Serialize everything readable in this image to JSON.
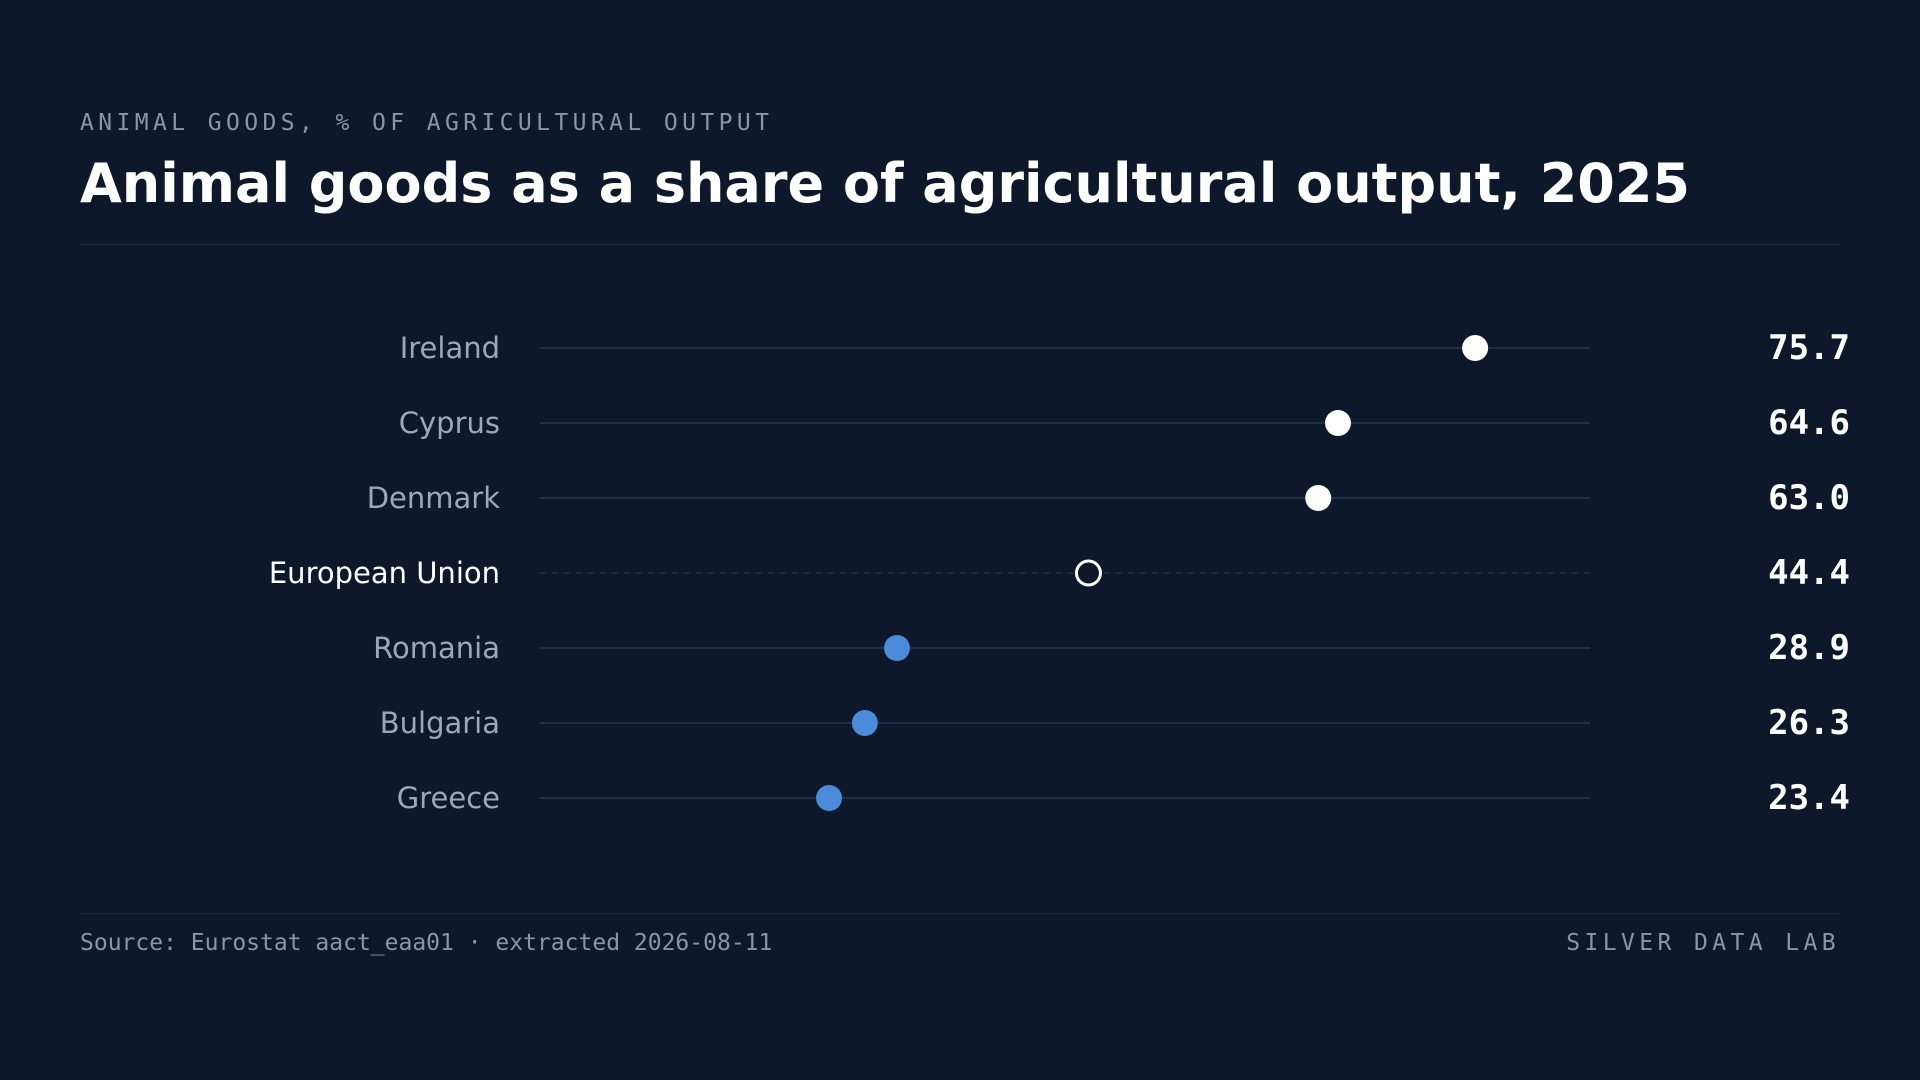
{
  "header": {
    "kicker": "ANIMAL GOODS, % OF AGRICULTURAL OUTPUT",
    "title": "Animal goods as a share of agricultural output, 2025"
  },
  "footer": {
    "source": "Source: Eurostat aact_eaa01 · extracted 2026-08-11",
    "brand": "SILVER DATA LAB"
  },
  "colors": {
    "background": "#0d192a",
    "above_reference": "#ffffff",
    "below_reference": "#4a8cd9",
    "track": "#1e3049",
    "country_label": "#9aa8bb",
    "reference_label": "#ffffff",
    "value_label": "#ffffff"
  },
  "chart_data": {
    "type": "dot",
    "title": "Animal goods as a share of agricultural output, 2025",
    "xlabel": "",
    "ylabel": "",
    "xlim": [
      0,
      85
    ],
    "grid": false,
    "legend": "none",
    "reference": "European Union",
    "categories": [
      "Ireland",
      "Cyprus",
      "Denmark",
      "European Union",
      "Romania",
      "Bulgaria",
      "Greece"
    ],
    "values": [
      75.7,
      64.6,
      63.0,
      44.4,
      28.9,
      26.3,
      23.4
    ],
    "value_labels": [
      "75.7",
      "64.6",
      "63.0",
      "44.4",
      "28.9",
      "26.3",
      "23.4"
    ]
  }
}
